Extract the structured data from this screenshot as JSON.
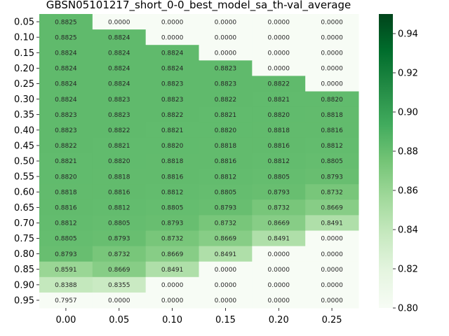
{
  "chart_data": {
    "type": "heatmap",
    "title": "GBSN05101217_short_0-0_best_model_sa_th-val_average",
    "xlabel": "",
    "ylabel": "",
    "x_categories": [
      "0.00",
      "0.05",
      "0.10",
      "0.15",
      "0.20",
      "0.25"
    ],
    "y_categories": [
      "0.05",
      "0.10",
      "0.15",
      "0.20",
      "0.25",
      "0.30",
      "0.35",
      "0.40",
      "0.45",
      "0.50",
      "0.55",
      "0.60",
      "0.65",
      "0.70",
      "0.75",
      "0.80",
      "0.85",
      "0.90",
      "0.95"
    ],
    "values": [
      [
        0.8825,
        0.0,
        0.0,
        0.0,
        0.0,
        0.0
      ],
      [
        0.8825,
        0.8824,
        0.0,
        0.0,
        0.0,
        0.0
      ],
      [
        0.8824,
        0.8824,
        0.8824,
        0.0,
        0.0,
        0.0
      ],
      [
        0.8824,
        0.8824,
        0.8824,
        0.8823,
        0.0,
        0.0
      ],
      [
        0.8824,
        0.8824,
        0.8823,
        0.8823,
        0.8822,
        0.0
      ],
      [
        0.8824,
        0.8823,
        0.8823,
        0.8822,
        0.8821,
        0.882
      ],
      [
        0.8823,
        0.8823,
        0.8822,
        0.8821,
        0.882,
        0.8818
      ],
      [
        0.8823,
        0.8822,
        0.8821,
        0.882,
        0.8818,
        0.8816
      ],
      [
        0.8822,
        0.8821,
        0.882,
        0.8818,
        0.8816,
        0.8812
      ],
      [
        0.8821,
        0.882,
        0.8818,
        0.8816,
        0.8812,
        0.8805
      ],
      [
        0.882,
        0.8818,
        0.8816,
        0.8812,
        0.8805,
        0.8793
      ],
      [
        0.8818,
        0.8816,
        0.8812,
        0.8805,
        0.8793,
        0.8732
      ],
      [
        0.8816,
        0.8812,
        0.8805,
        0.8793,
        0.8732,
        0.8669
      ],
      [
        0.8812,
        0.8805,
        0.8793,
        0.8732,
        0.8669,
        0.8491
      ],
      [
        0.8805,
        0.8793,
        0.8732,
        0.8669,
        0.8491,
        0.0
      ],
      [
        0.8793,
        0.8732,
        0.8669,
        0.8491,
        0.0,
        0.0
      ],
      [
        0.8591,
        0.8669,
        0.8491,
        0.0,
        0.0,
        0.0
      ],
      [
        0.8388,
        0.8355,
        0.0,
        0.0,
        0.0,
        0.0
      ],
      [
        0.7957,
        0.0,
        0.0,
        0.0,
        0.0,
        0.0
      ]
    ],
    "value_format_decimals": 4,
    "colormap": "Greens",
    "color_range": [
      0.8,
      0.95
    ],
    "colorbar_ticks": [
      "0.80",
      "0.82",
      "0.84",
      "0.86",
      "0.88",
      "0.90",
      "0.92",
      "0.94"
    ],
    "grid": false,
    "legend": "colorbar-right"
  }
}
